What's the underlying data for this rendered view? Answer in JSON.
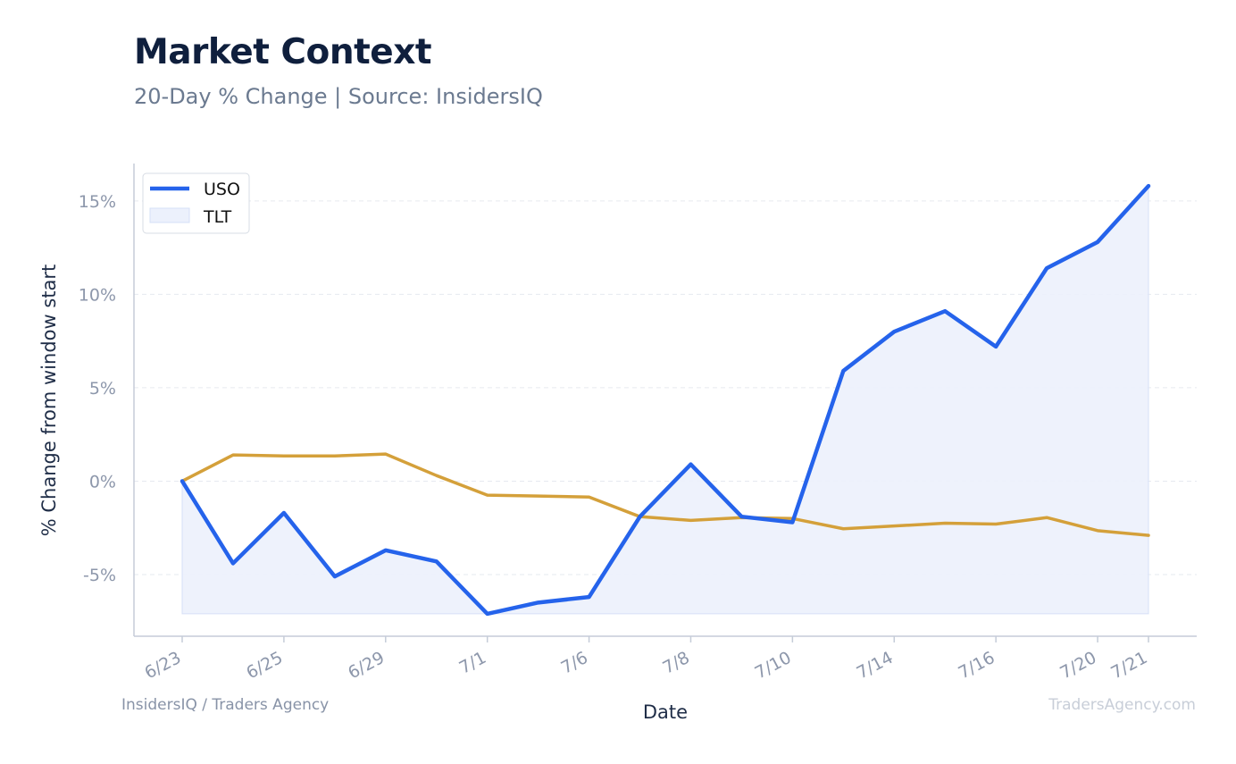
{
  "header": {
    "title": "Market Context",
    "subtitle": "20-Day % Change | Source: InsidersIQ"
  },
  "footer": {
    "left": "InsidersIQ / Traders Agency",
    "right": "TradersAgency.com"
  },
  "colors": {
    "uso": "#2563eb",
    "uso_fill": "#ecf1fc",
    "tlt": "#d4a03a",
    "grid": "#e6e9ef",
    "axis": "#c5ccd8"
  },
  "chart_data": {
    "type": "line",
    "xlabel": "Date",
    "ylabel": "% Change from window start",
    "ylim": [
      -8.3,
      17.0
    ],
    "yticks": [
      15,
      10,
      5,
      0,
      -5
    ],
    "ytick_labels": [
      "15%",
      "10%",
      "5%",
      "0%",
      "-5%"
    ],
    "xtick_labels": [
      {
        "index": 0,
        "label": "6/23"
      },
      {
        "index": 2,
        "label": "6/25"
      },
      {
        "index": 4,
        "label": "6/29"
      },
      {
        "index": 6,
        "label": "7/1"
      },
      {
        "index": 8,
        "label": "7/6"
      },
      {
        "index": 10,
        "label": "7/8"
      },
      {
        "index": 12,
        "label": "7/10"
      },
      {
        "index": 14,
        "label": "7/14"
      },
      {
        "index": 16,
        "label": "7/16"
      },
      {
        "index": 18,
        "label": "7/20"
      },
      {
        "index": 19,
        "label": "7/21"
      }
    ],
    "grid": true,
    "legend": "top-left",
    "series": [
      {
        "name": "USO",
        "style": "line",
        "values": [
          0.0,
          -4.4,
          -1.7,
          -5.1,
          -3.7,
          -4.3,
          -7.1,
          -6.5,
          -6.2,
          -1.9,
          0.9,
          -1.9,
          -2.2,
          5.9,
          8.0,
          9.1,
          7.2,
          11.4,
          12.8,
          15.8
        ]
      },
      {
        "name": "TLT",
        "style": "area",
        "values": [
          0.0,
          1.4,
          1.35,
          1.35,
          1.45,
          0.3,
          -0.75,
          -0.8,
          -0.85,
          -1.9,
          -2.1,
          -1.95,
          -2.0,
          -2.55,
          -2.4,
          -2.25,
          -2.3,
          -1.95,
          -2.65,
          -2.9
        ]
      }
    ]
  }
}
